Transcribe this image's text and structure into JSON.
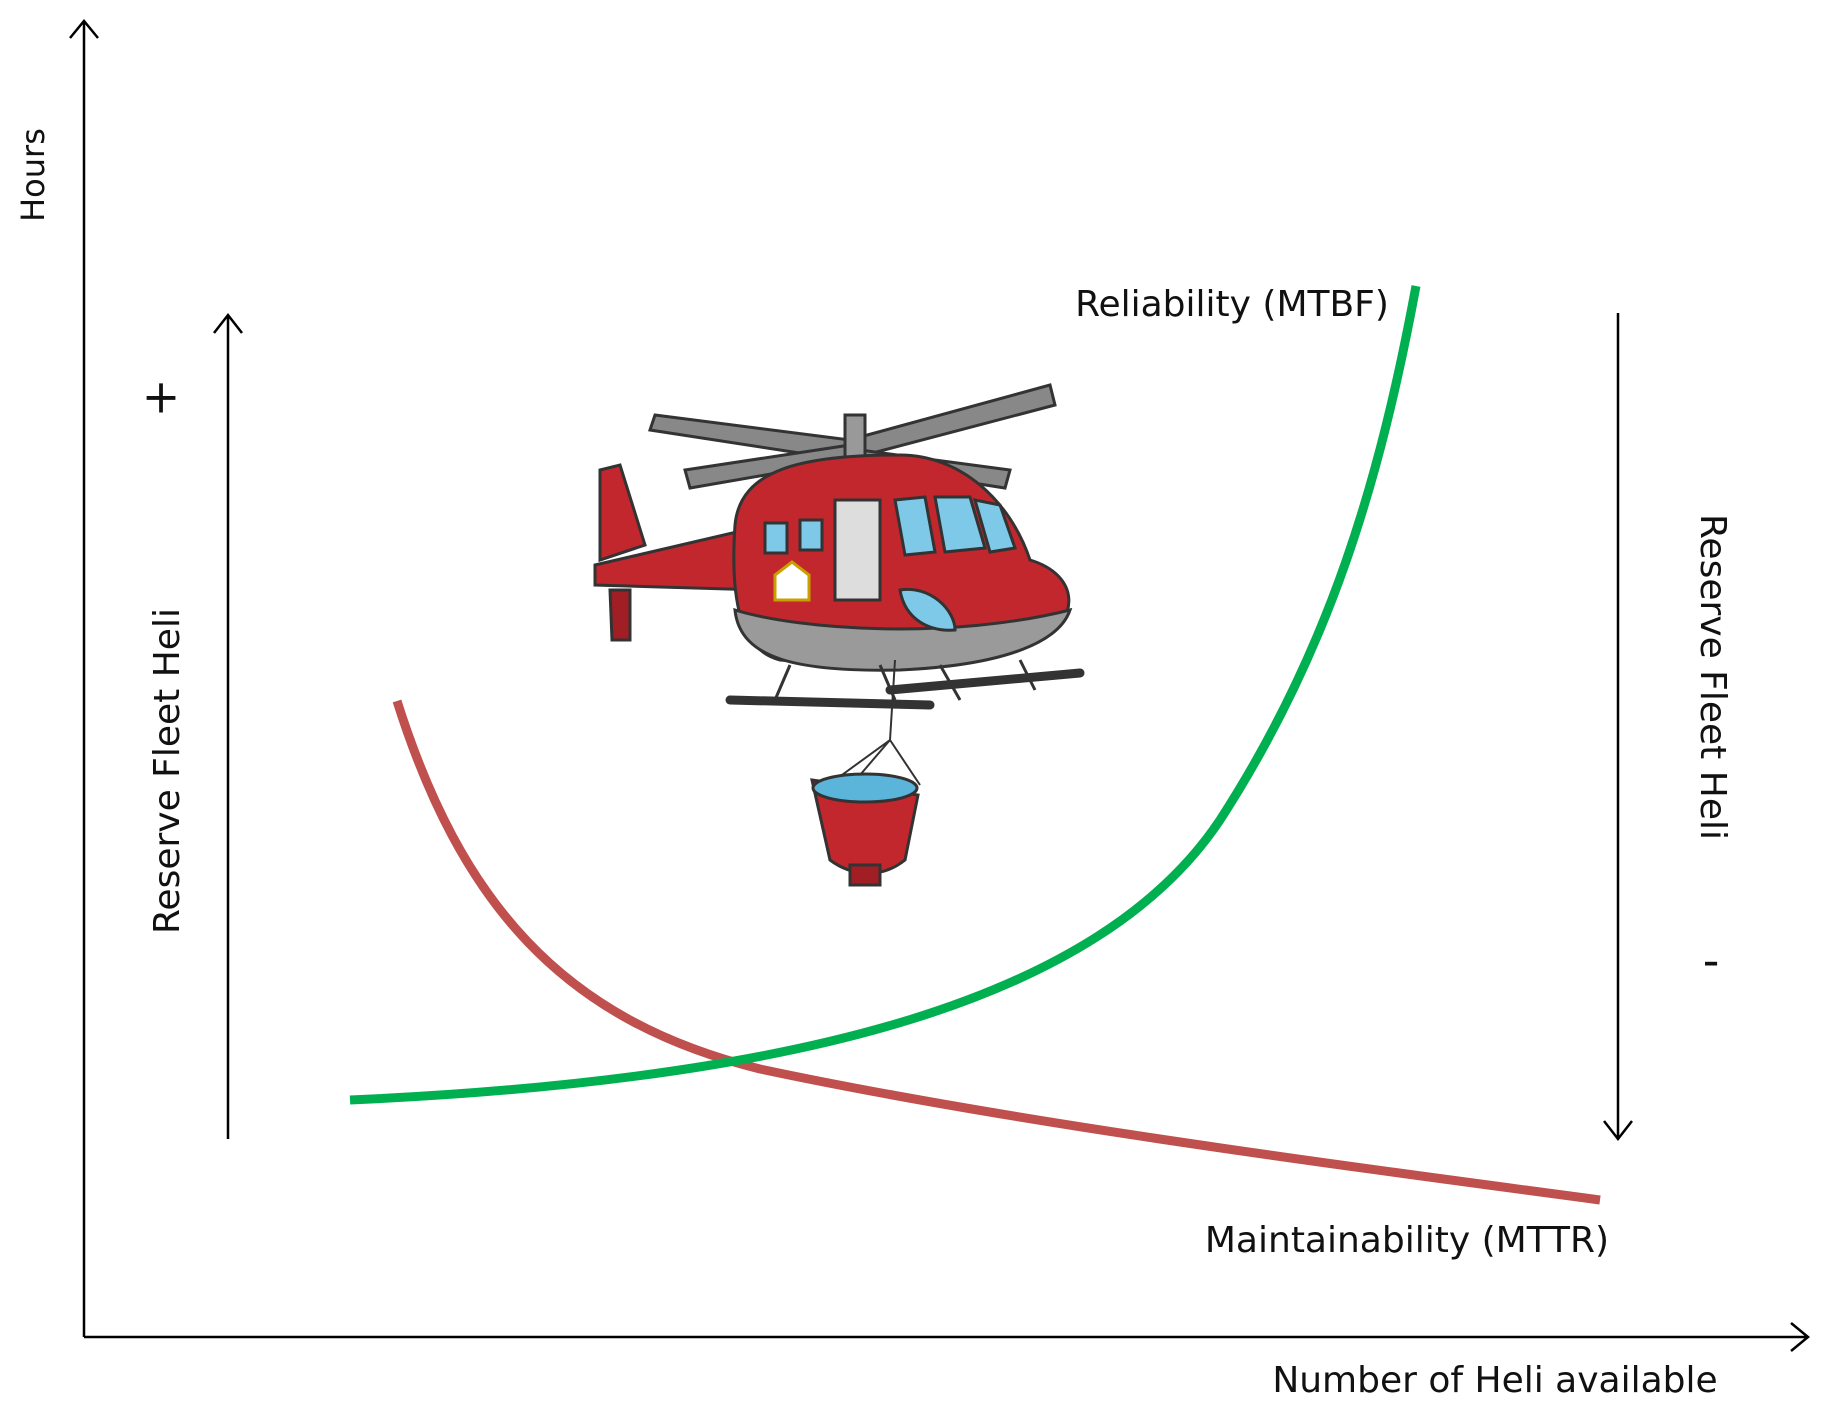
{
  "axes": {
    "y_label": "Hours",
    "x_label": "Number of Heli available"
  },
  "curves": [
    {
      "label": "Reliability (MTBF)"
    },
    {
      "label": "Maintainability (MTTR)"
    }
  ],
  "reserve": {
    "left": {
      "label": "Reserve Fleet Heli",
      "sign": "+"
    },
    "right": {
      "label": "Reserve Fleet Heli",
      "sign": "-"
    }
  }
}
